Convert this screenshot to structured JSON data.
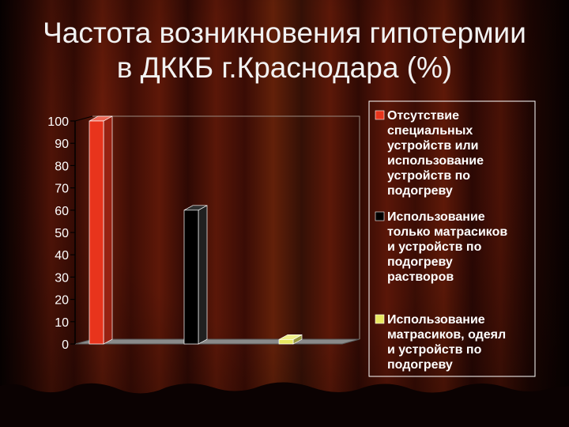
{
  "slide": {
    "title_line1": "Частота возникновения гипотермии",
    "title_line2": "в ДККБ г.Краснодара (%)"
  },
  "chart_data": {
    "type": "bar",
    "chart_style": "3d-column",
    "title": "",
    "xlabel": "",
    "ylabel": "",
    "ylim": [
      0,
      100
    ],
    "yticks": [
      "100",
      "90",
      "80",
      "70",
      "60",
      "50",
      "40",
      "30",
      "20",
      "10",
      "0"
    ],
    "grid": false,
    "legend_position": "right",
    "series": [
      {
        "name": "Отсутствие специальных устройств или использование устройств по подогреву",
        "value": 100,
        "color": "#e8341c",
        "legend_lines": [
          "Отсутствие",
          "специальных",
          "устройств или",
          "использование",
          "устройств по",
          "подогреву"
        ]
      },
      {
        "name": "Использование только матрасиков и устройств по подогреву растворов",
        "value": 60,
        "color": "#000000",
        "legend_lines": [
          "Использование",
          "только матрасиков",
          "и устройств по",
          "подогреву",
          "растворов"
        ]
      },
      {
        "name": "Использование матрасиков, одеял и устройств по подогреву",
        "value": 2,
        "color": "#e8e860",
        "legend_lines": [
          "Использование",
          "матрасиков, одеял",
          "и устройств по",
          "подогреву"
        ]
      }
    ]
  }
}
